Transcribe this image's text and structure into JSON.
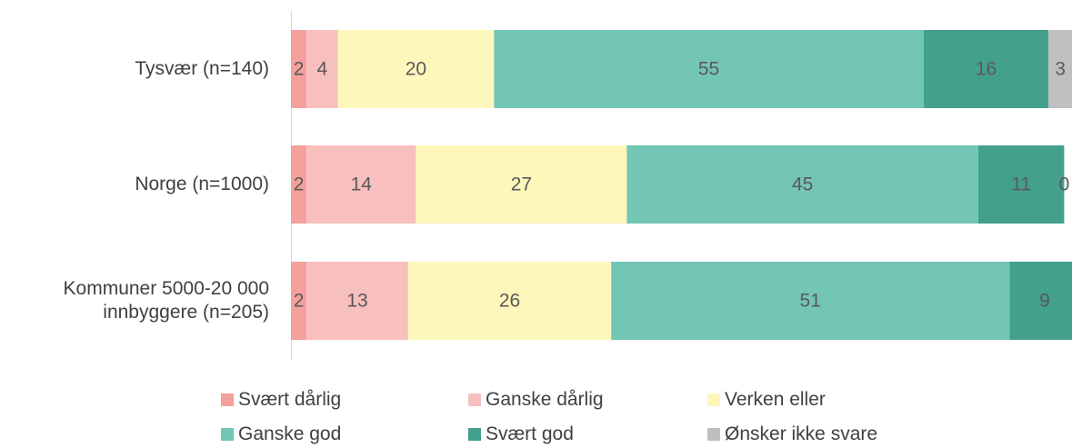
{
  "chart_data": {
    "type": "stacked-bar",
    "orientation": "horizontal",
    "categories": [
      "Tysvær (n=140)",
      "Norge (n=1000)",
      "Kommuner 5000-20 000\ninnbyggere (n=205)"
    ],
    "xlim": [
      0,
      100
    ],
    "series": [
      {
        "name": "Svært dårlig",
        "color": "#f4a09c",
        "values": [
          2,
          2,
          2
        ]
      },
      {
        "name": "Ganske dårlig",
        "color": "#f7bfbe",
        "values": [
          4,
          14,
          13
        ]
      },
      {
        "name": "Verken eller",
        "color": "#fdf7bc",
        "values": [
          20,
          27,
          26
        ]
      },
      {
        "name": "Ganske god",
        "color": "#73c5b5",
        "values": [
          55,
          45,
          51
        ]
      },
      {
        "name": "Svært god",
        "color": "#42a08c",
        "values": [
          16,
          11,
          9
        ]
      },
      {
        "name": "Ønsker ikke svare",
        "color": "#bfbfbf",
        "values": [
          3,
          0,
          null
        ]
      }
    ]
  }
}
